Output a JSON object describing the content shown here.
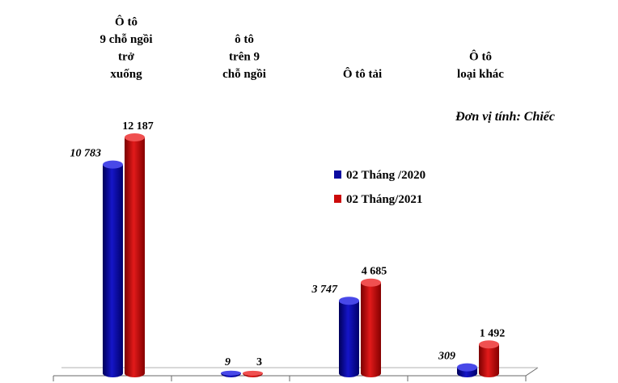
{
  "chart_data": {
    "type": "bar",
    "unit_label": "Đơn vị tính: Chiếc",
    "categories": [
      [
        "Ô tô",
        "9 chỗ ngồi",
        "trở",
        "xuống"
      ],
      [
        "ô tô",
        "trên 9",
        "chỗ ngồi"
      ],
      [
        "Ô tô tải"
      ],
      [
        "Ô tô",
        "loại khác"
      ]
    ],
    "series": [
      {
        "name": "02 Tháng /2020",
        "color": "#0a0aa0",
        "values": [
          10783,
          9,
          3747,
          309
        ],
        "labels": [
          "10 783",
          "9",
          "3 747",
          "309"
        ]
      },
      {
        "name": "02 Tháng/2021",
        "color": "#cc0a0a",
        "values": [
          12187,
          3,
          4685,
          1492
        ],
        "labels": [
          "12 187",
          "3",
          "4 685",
          "1 492"
        ]
      }
    ],
    "ylim": [
      0,
      13000
    ],
    "legend_position": "right"
  }
}
